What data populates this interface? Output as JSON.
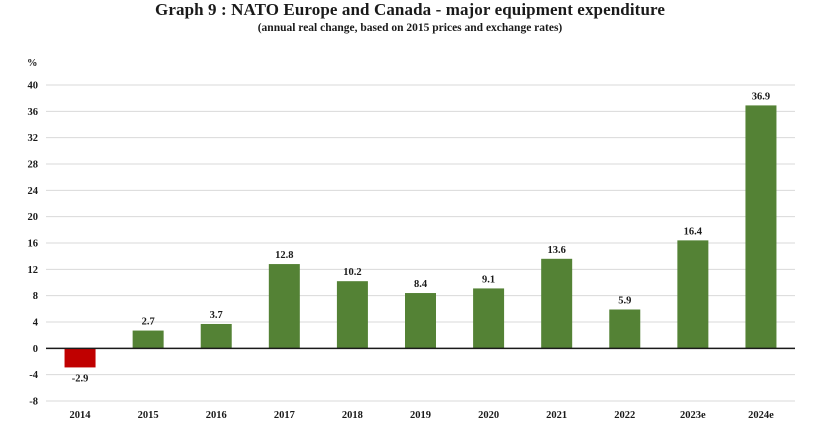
{
  "chart_data": {
    "type": "bar",
    "title": "Graph 9 : NATO Europe and Canada - major equipment expenditure",
    "subtitle": "(annual real change, based on 2015 prices and exchange rates)",
    "xlabel": "",
    "ylabel": "%",
    "categories": [
      "2014",
      "2015",
      "2016",
      "2017",
      "2018",
      "2019",
      "2020",
      "2021",
      "2022",
      "2023e",
      "2024e"
    ],
    "values": [
      -2.9,
      2.7,
      3.7,
      12.8,
      10.2,
      8.4,
      9.1,
      13.6,
      5.9,
      16.4,
      36.9
    ],
    "data_labels": [
      "-2.9",
      "2.7",
      "3.7",
      "12.8",
      "10.2",
      "8.4",
      "9.1",
      "13.6",
      "5.9",
      "16.4",
      "36.9"
    ],
    "ylim": [
      -8,
      40
    ],
    "yticks": [
      40,
      36,
      32,
      28,
      24,
      20,
      16,
      12,
      8,
      4,
      0,
      -4,
      -8
    ],
    "grid": true,
    "legend": "none",
    "colors": {
      "positive": "#548235",
      "negative": "#C00000",
      "grid": "#d9d9d9",
      "zero_line": "#1a1a1a"
    }
  }
}
